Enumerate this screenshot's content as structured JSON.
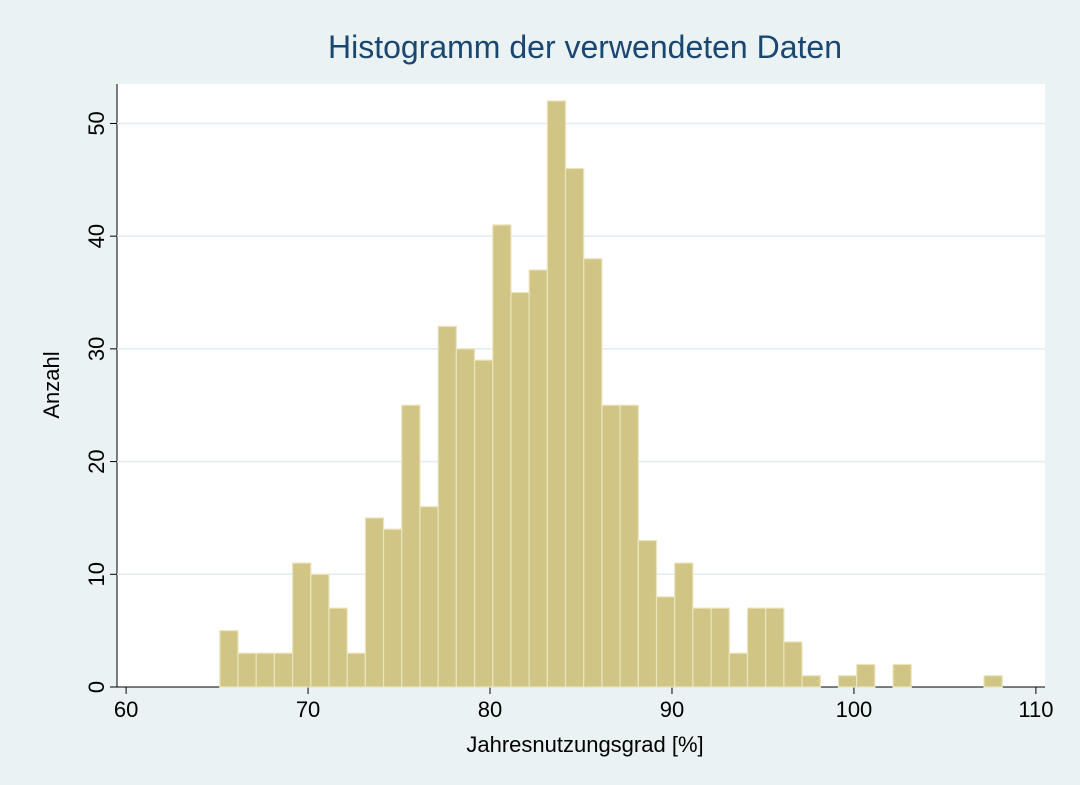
{
  "chart_data": {
    "type": "histogram",
    "title": "Histogramm der verwendeten Daten",
    "x_label": "Jahresnutzungsgrad [%]",
    "y_label": "Anzahl",
    "bins": [
      65.15,
      66.15,
      67.15,
      68.15,
      69.15,
      70.15,
      71.15,
      72.15,
      73.15,
      74.15,
      75.15,
      76.15,
      77.15,
      78.15,
      79.15,
      80.15,
      81.15,
      82.15,
      83.15,
      84.15,
      85.15,
      86.15,
      87.15,
      88.15,
      89.15,
      90.15,
      91.15,
      92.15,
      93.15,
      94.15,
      95.15,
      96.15,
      97.15,
      98.15,
      99.15,
      100.15,
      101.15,
      102.15,
      103.15,
      104.15,
      105.15,
      106.15,
      107.15,
      108.15
    ],
    "values": [
      5,
      3,
      3,
      3,
      11,
      10,
      7,
      3,
      15,
      14,
      25,
      16,
      32,
      30,
      29,
      41,
      35,
      37,
      52,
      46,
      38,
      25,
      25,
      13,
      8,
      11,
      7,
      7,
      3,
      7,
      7,
      4,
      1,
      0,
      1,
      2,
      0,
      2,
      0,
      0,
      0,
      0,
      1
    ],
    "color": "#d0c585",
    "xlim": [
      59.5,
      110.5
    ],
    "xticks": [
      60,
      70,
      80,
      90,
      100,
      110
    ],
    "ylim": [
      0,
      53.5
    ],
    "yticks": [
      0,
      10,
      20,
      30,
      40,
      50
    ],
    "grid": true
  }
}
